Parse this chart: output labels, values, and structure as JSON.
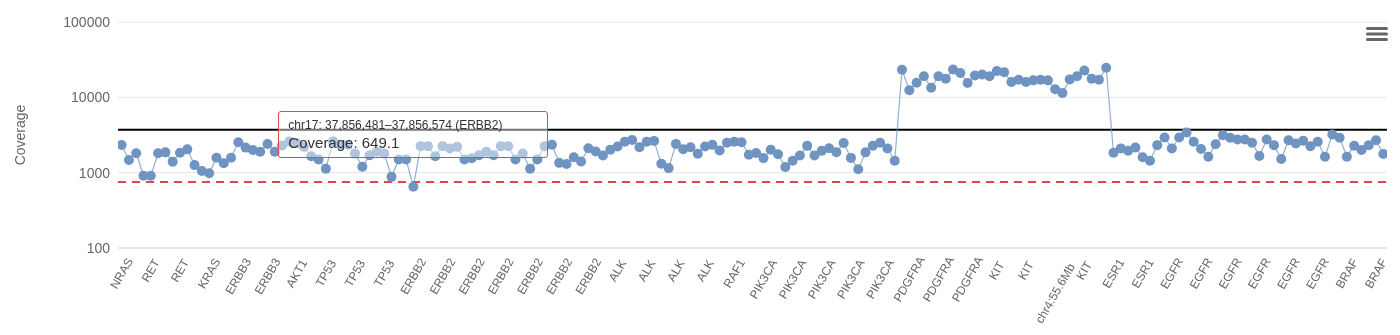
{
  "chart_data": {
    "type": "line",
    "ylabel": "Coverage",
    "log": "y",
    "grid": "y",
    "marker": "circle",
    "line_style": "solid",
    "ylim": [
      100,
      100000
    ],
    "yticks": [
      100,
      1000,
      10000,
      100000
    ],
    "categories": [
      "NRAS",
      null,
      null,
      null,
      "RET",
      null,
      null,
      null,
      "RET",
      null,
      null,
      null,
      "KRAS",
      null,
      null,
      null,
      "ERBB3",
      null,
      null,
      null,
      "ERBB3",
      null,
      null,
      null,
      "AKT1",
      null,
      null,
      null,
      "TP53",
      null,
      null,
      null,
      "TP53",
      null,
      null,
      null,
      "TP53",
      null,
      null,
      null,
      "ERBB2",
      null,
      null,
      null,
      "ERBB2",
      null,
      null,
      null,
      "ERBB2",
      null,
      null,
      null,
      "ERBB2",
      null,
      null,
      null,
      "ERBB2",
      null,
      null,
      null,
      "ERBB2",
      null,
      null,
      null,
      "ERBB2",
      null,
      null,
      null,
      "ALK",
      null,
      null,
      null,
      "ALK",
      null,
      null,
      null,
      "ALK",
      null,
      null,
      null,
      "ALK",
      null,
      null,
      null,
      "RAF1",
      null,
      null,
      null,
      "PIK3CA",
      null,
      null,
      null,
      "PIK3CA",
      null,
      null,
      null,
      "PIK3CA",
      null,
      null,
      null,
      "PIK3CA",
      null,
      null,
      null,
      "PIK3CA",
      null,
      null,
      null,
      "PDGFRA",
      null,
      null,
      null,
      "PDGFRA",
      null,
      null,
      null,
      "PDGFRA",
      null,
      null,
      null,
      "KIT",
      null,
      null,
      null,
      "KIT",
      null,
      null,
      null,
      "chr4:55.6Mb",
      null,
      null,
      null,
      "KIT",
      null,
      null,
      null,
      "ESR1",
      null,
      null,
      null,
      "ESR1",
      null,
      null,
      null,
      "EGFR",
      null,
      null,
      null,
      "EGFR",
      null,
      null,
      null,
      "EGFR",
      null,
      null,
      null,
      "EGFR",
      null,
      null,
      null,
      "EGFR",
      null,
      null,
      null,
      "EGFR",
      null,
      null,
      null,
      "BRAF",
      null,
      null,
      null,
      "BRAF",
      null
    ],
    "series": [
      {
        "color": "#7094c1",
        "values": [
          2330,
          1470,
          1810,
          910,
          910,
          1810,
          1860,
          1400,
          1840,
          2040,
          1260,
          1050,
          980,
          1580,
          1330,
          1580,
          2530,
          2150,
          2000,
          1900,
          2400,
          1900,
          2300,
          2600,
          2450,
          2200,
          1650,
          1500,
          1130,
          2600,
          2350,
          2350,
          1800,
          1200,
          1700,
          1900,
          1800,
          880,
          1500,
          1500,
          649.1,
          2250,
          2250,
          1650,
          2250,
          2100,
          2200,
          1500,
          1550,
          1700,
          1900,
          1700,
          2250,
          2250,
          1500,
          1800,
          1130,
          1500,
          2250,
          2350,
          1350,
          1300,
          1600,
          1410,
          2110,
          1910,
          1690,
          2010,
          2220,
          2580,
          2720,
          2180,
          2580,
          2640,
          1310,
          1150,
          2410,
          2050,
          2180,
          1780,
          2220,
          2340,
          1970,
          2500,
          2580,
          2530,
          1730,
          1820,
          1560,
          2010,
          1760,
          1190,
          1440,
          1690,
          2270,
          1690,
          1950,
          2110,
          1870,
          2470,
          1570,
          1110,
          1860,
          2280,
          2490,
          2100,
          1440,
          23200,
          12400,
          15600,
          19000,
          13400,
          19100,
          17700,
          23400,
          21000,
          15500,
          19500,
          20100,
          19000,
          22300,
          21600,
          16000,
          17100,
          16000,
          16800,
          17100,
          16800,
          12800,
          11400,
          17300,
          19000,
          22700,
          17700,
          17100,
          24700,
          1840,
          2100,
          1950,
          2160,
          1600,
          1440,
          2320,
          2930,
          2100,
          2930,
          3410,
          2570,
          2060,
          1630,
          2390,
          3150,
          2900,
          2760,
          2760,
          2490,
          1660,
          2760,
          2320,
          1520,
          2700,
          2440,
          2650,
          2250,
          2570,
          1630,
          3210,
          2900,
          1630,
          2280,
          2000,
          2320,
          2700,
          1770
        ]
      }
    ],
    "ref_lines": [
      {
        "axis": "y",
        "value": 3700,
        "color": "#000000",
        "line_style": "solid"
      },
      {
        "axis": "y",
        "value": 750,
        "color": "#e0474c",
        "line_style": "dashed"
      }
    ],
    "annotations": [
      "chr17: 37,856,481–37,856,574 (ERBB2)",
      {
        "text": "Coverage: 649.1",
        "x": "ERBB2",
        "y": 649.1
      }
    ]
  }
}
